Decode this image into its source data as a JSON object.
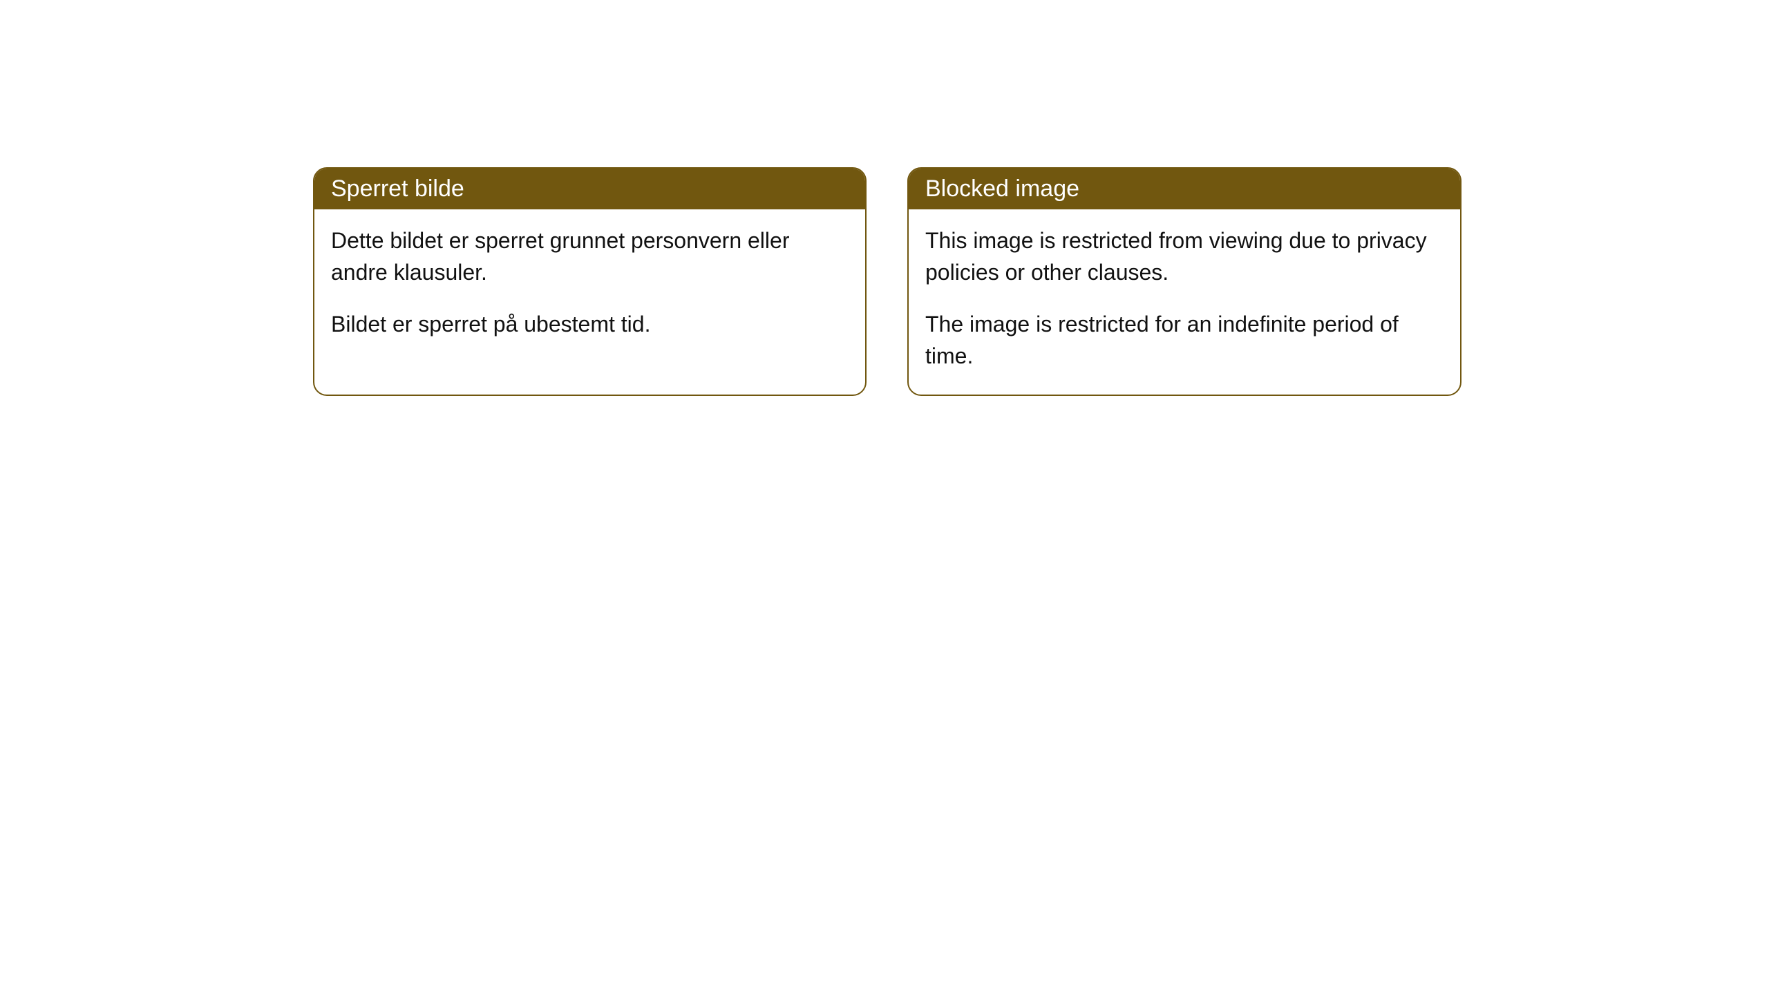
{
  "cards": {
    "left": {
      "title": "Sperret bilde",
      "paragraph1": "Dette bildet er sperret grunnet personvern eller andre klausuler.",
      "paragraph2": "Bildet er sperret på ubestemt tid."
    },
    "right": {
      "title": "Blocked image",
      "paragraph1": "This image is restricted from viewing due to privacy policies or other clauses.",
      "paragraph2": "The image is restricted for an indefinite period of time."
    }
  },
  "styling": {
    "header_bg_color": "#71570f",
    "header_text_color": "#ffffff",
    "border_color": "#71570f",
    "body_text_color": "#111111",
    "background_color": "#ffffff",
    "border_radius": 20,
    "title_fontsize": 34,
    "body_fontsize": 32
  }
}
